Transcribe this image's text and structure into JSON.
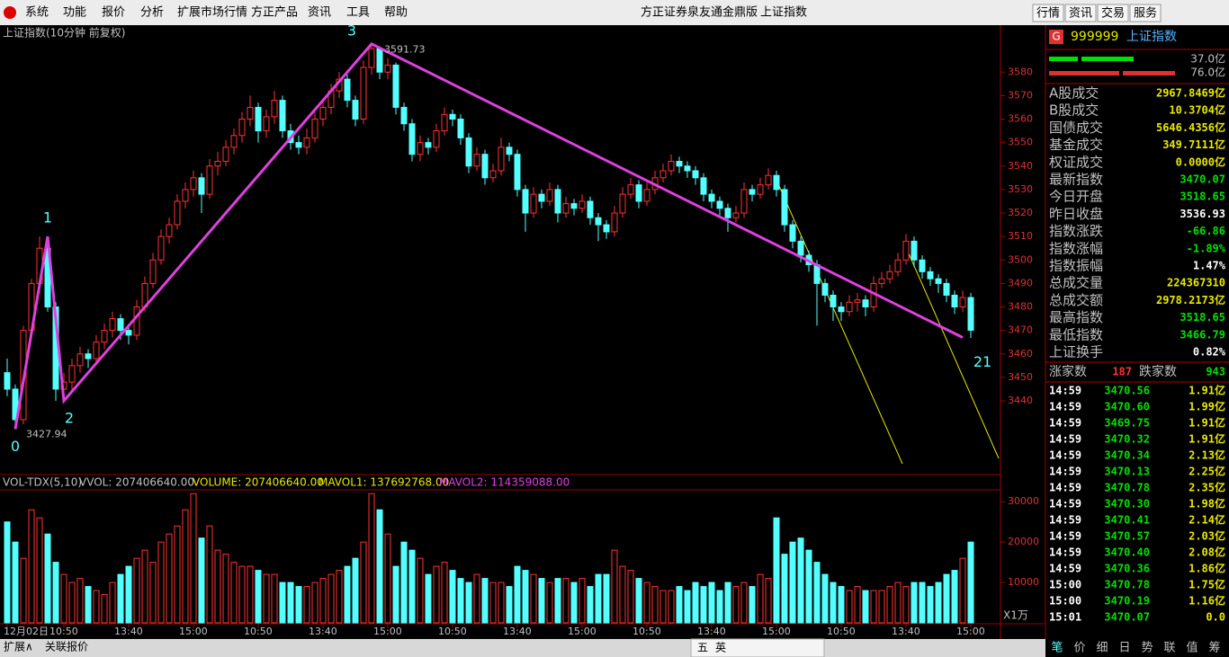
{
  "menu": {
    "items": [
      "系统",
      "功能",
      "报价",
      "分析",
      "扩展市场行情",
      "方正产品",
      "资讯",
      "工具",
      "帮助"
    ],
    "title": [
      "方正证券泉友通金鼎版",
      "上证指数"
    ],
    "buttons": [
      "行情",
      "资讯",
      "交易",
      "服务"
    ]
  },
  "chart_data": [
    {
      "type": "candlestick",
      "title": "上证指数(10分钟 前复权)",
      "up_color": "#ff3232",
      "down_color": "#54ffff",
      "ylim": [
        3409,
        3600
      ],
      "yticks": [
        3440,
        3450,
        3460,
        3470,
        3480,
        3490,
        3500,
        3510,
        3520,
        3530,
        3540,
        3550,
        3560,
        3570,
        3580
      ],
      "max_label": 3591.73,
      "min_label": 3427.94,
      "candles": [
        [
          3452,
          3458,
          3442,
          3445
        ],
        [
          3445,
          3447,
          3427.94,
          3432
        ],
        [
          3432,
          3472,
          3430,
          3470
        ],
        [
          3470,
          3492,
          3466,
          3490
        ],
        [
          3490,
          3510,
          3486,
          3505
        ],
        [
          3505,
          3507,
          3478,
          3480
        ],
        [
          3480,
          3482,
          3440,
          3445
        ],
        [
          3445,
          3452,
          3440,
          3448
        ],
        [
          3448,
          3458,
          3444,
          3455
        ],
        [
          3455,
          3463,
          3452,
          3460
        ],
        [
          3460,
          3462,
          3454,
          3458
        ],
        [
          3458,
          3468,
          3456,
          3465
        ],
        [
          3465,
          3473,
          3462,
          3470
        ],
        [
          3470,
          3478,
          3467,
          3475
        ],
        [
          3475,
          3477,
          3466,
          3470
        ],
        [
          3470,
          3472,
          3464,
          3468
        ],
        [
          3468,
          3483,
          3466,
          3480
        ],
        [
          3480,
          3493,
          3478,
          3490
        ],
        [
          3490,
          3503,
          3488,
          3500
        ],
        [
          3500,
          3513,
          3498,
          3510
        ],
        [
          3510,
          3518,
          3507,
          3515
        ],
        [
          3515,
          3528,
          3513,
          3525
        ],
        [
          3525,
          3533,
          3522,
          3530
        ],
        [
          3530,
          3538,
          3527,
          3535
        ],
        [
          3535,
          3537,
          3520,
          3528
        ],
        [
          3528,
          3543,
          3526,
          3540
        ],
        [
          3540,
          3546,
          3536,
          3542
        ],
        [
          3542,
          3551,
          3540,
          3548
        ],
        [
          3548,
          3556,
          3545,
          3553
        ],
        [
          3553,
          3563,
          3550,
          3560
        ],
        [
          3560,
          3570,
          3557,
          3565
        ],
        [
          3565,
          3567,
          3550,
          3555
        ],
        [
          3555,
          3564,
          3552,
          3561
        ],
        [
          3561,
          3572,
          3558,
          3568
        ],
        [
          3568,
          3570,
          3552,
          3555
        ],
        [
          3555,
          3558,
          3547,
          3550
        ],
        [
          3550,
          3553,
          3545,
          3548
        ],
        [
          3548,
          3556,
          3545,
          3552
        ],
        [
          3552,
          3563,
          3550,
          3560
        ],
        [
          3560,
          3568,
          3557,
          3565
        ],
        [
          3565,
          3575,
          3562,
          3572
        ],
        [
          3572,
          3580,
          3569,
          3577
        ],
        [
          3577,
          3579,
          3565,
          3568
        ],
        [
          3568,
          3570,
          3557,
          3560
        ],
        [
          3560,
          3585,
          3558,
          3582
        ],
        [
          3582,
          3591.73,
          3579,
          3590
        ],
        [
          3590,
          3591,
          3577,
          3580
        ],
        [
          3580,
          3586,
          3577,
          3583
        ],
        [
          3583,
          3584,
          3562,
          3565
        ],
        [
          3565,
          3567,
          3555,
          3558
        ],
        [
          3558,
          3560,
          3542,
          3545
        ],
        [
          3545,
          3553,
          3542,
          3550
        ],
        [
          3550,
          3552,
          3545,
          3548
        ],
        [
          3548,
          3558,
          3546,
          3555
        ],
        [
          3555,
          3565,
          3553,
          3562
        ],
        [
          3562,
          3564,
          3557,
          3560
        ],
        [
          3560,
          3562,
          3549,
          3552
        ],
        [
          3552,
          3554,
          3537,
          3540
        ],
        [
          3540,
          3548,
          3538,
          3545
        ],
        [
          3545,
          3547,
          3532,
          3535
        ],
        [
          3535,
          3541,
          3533,
          3538
        ],
        [
          3538,
          3552,
          3536,
          3548
        ],
        [
          3548,
          3550,
          3542,
          3545
        ],
        [
          3545,
          3547,
          3527,
          3530
        ],
        [
          3530,
          3532,
          3512,
          3520
        ],
        [
          3520,
          3531,
          3518,
          3528
        ],
        [
          3528,
          3530,
          3522,
          3525
        ],
        [
          3525,
          3533,
          3523,
          3530
        ],
        [
          3530,
          3532,
          3516,
          3520
        ],
        [
          3520,
          3527,
          3518,
          3524
        ],
        [
          3524,
          3526,
          3519,
          3522
        ],
        [
          3522,
          3528,
          3520,
          3525
        ],
        [
          3525,
          3527,
          3515,
          3518
        ],
        [
          3518,
          3520,
          3508,
          3515
        ],
        [
          3515,
          3517,
          3509,
          3512
        ],
        [
          3512,
          3523,
          3510,
          3520
        ],
        [
          3520,
          3531,
          3518,
          3528
        ],
        [
          3528,
          3535,
          3526,
          3532
        ],
        [
          3532,
          3534,
          3522,
          3525
        ],
        [
          3525,
          3533,
          3523,
          3530
        ],
        [
          3530,
          3538,
          3528,
          3535
        ],
        [
          3535,
          3541,
          3533,
          3538
        ],
        [
          3538,
          3545,
          3536,
          3542
        ],
        [
          3542,
          3544,
          3537,
          3540
        ],
        [
          3540,
          3542,
          3535,
          3538
        ],
        [
          3538,
          3540,
          3532,
          3535
        ],
        [
          3535,
          3537,
          3525,
          3528
        ],
        [
          3528,
          3530,
          3522,
          3525
        ],
        [
          3525,
          3527,
          3519,
          3522
        ],
        [
          3522,
          3524,
          3512,
          3518
        ],
        [
          3518,
          3523,
          3516,
          3520
        ],
        [
          3520,
          3533,
          3518,
          3530
        ],
        [
          3530,
          3532,
          3525,
          3528
        ],
        [
          3528,
          3535,
          3526,
          3532
        ],
        [
          3532,
          3539,
          3530,
          3536
        ],
        [
          3536,
          3538,
          3527,
          3530
        ],
        [
          3530,
          3532,
          3512,
          3515
        ],
        [
          3515,
          3517,
          3505,
          3508
        ],
        [
          3508,
          3510,
          3499,
          3502
        ],
        [
          3502,
          3504,
          3495,
          3498
        ],
        [
          3498,
          3500,
          3472,
          3490
        ],
        [
          3490,
          3492,
          3482,
          3485
        ],
        [
          3485,
          3487,
          3474,
          3480
        ],
        [
          3480,
          3482,
          3474,
          3478
        ],
        [
          3478,
          3485,
          3476,
          3482
        ],
        [
          3482,
          3486,
          3478,
          3483
        ],
        [
          3483,
          3485,
          3476,
          3480
        ],
        [
          3480,
          3493,
          3478,
          3490
        ],
        [
          3490,
          3495,
          3488,
          3492
        ],
        [
          3492,
          3498,
          3490,
          3495
        ],
        [
          3495,
          3503,
          3493,
          3500
        ],
        [
          3500,
          3511,
          3498,
          3508
        ],
        [
          3508,
          3510,
          3497,
          3500
        ],
        [
          3500,
          3502,
          3492,
          3495
        ],
        [
          3495,
          3497,
          3489,
          3492
        ],
        [
          3492,
          3494,
          3486,
          3490
        ],
        [
          3490,
          3492,
          3482,
          3485
        ],
        [
          3485,
          3487,
          3477,
          3480
        ],
        [
          3480,
          3487,
          3478,
          3484
        ],
        [
          3484,
          3486,
          3466.79,
          3470.07
        ]
      ],
      "zigzag": {
        "color": "#e040e0",
        "labels": [
          0,
          1,
          2,
          3,
          21
        ],
        "x": [
          1,
          5,
          7,
          45,
          118
        ],
        "y": [
          3428,
          3510,
          3440,
          3592,
          3467
        ]
      }
    },
    {
      "type": "bar",
      "title": "VOL-TDX(5,10)",
      "legend": [
        "VVOL: 207406640.00",
        "VOLUME: 207406640.00",
        "MAVOL1: 137692768.00",
        "MAVOL2: 114359088.00"
      ],
      "unit_label": "X1万",
      "period": "10分钟",
      "ylim": [
        0,
        32500
      ],
      "yticks": [
        10000,
        20000,
        30000
      ],
      "xticks": [
        {
          "value": 0,
          "label": "12月02日"
        },
        {
          "value": 7,
          "label": "10:50"
        },
        {
          "value": 15,
          "label": "13:40"
        },
        {
          "value": 23,
          "label": "15:00"
        },
        {
          "value": 31,
          "label": "10:50"
        },
        {
          "value": 39,
          "label": "13:40"
        },
        {
          "value": 47,
          "label": "15:00"
        },
        {
          "value": 55,
          "label": "10:50"
        },
        {
          "value": 63,
          "label": "13:40"
        },
        {
          "value": 71,
          "label": "15:00"
        },
        {
          "value": 79,
          "label": "10:50"
        },
        {
          "value": 87,
          "label": "13:40"
        },
        {
          "value": 95,
          "label": "15:00"
        },
        {
          "value": 103,
          "label": "10:50"
        },
        {
          "value": 111,
          "label": "13:40"
        },
        {
          "value": 119,
          "label": "15:00"
        }
      ],
      "values": [
        25000,
        20000,
        16000,
        28000,
        26000,
        22000,
        15000,
        12000,
        10000,
        11000,
        9000,
        8000,
        7000,
        10000,
        12000,
        14000,
        16000,
        18000,
        15000,
        20000,
        22000,
        24000,
        28000,
        32000,
        21000,
        24000,
        18000,
        17000,
        15000,
        14000,
        14000,
        13000,
        12000,
        12000,
        10000,
        10000,
        9000,
        9000,
        10000,
        11000,
        12000,
        13000,
        14000,
        16000,
        20000,
        32000,
        28000,
        22000,
        14000,
        20000,
        18000,
        16000,
        12000,
        14000,
        15000,
        13000,
        11000,
        10000,
        12000,
        11000,
        10000,
        10000,
        9000,
        14000,
        13000,
        12000,
        11000,
        10000,
        11000,
        11000,
        10000,
        11000,
        9000,
        12000,
        12000,
        18000,
        14000,
        13000,
        11000,
        10000,
        9000,
        8000,
        8000,
        9000,
        8000,
        10000,
        9000,
        10000,
        8000,
        10000,
        9000,
        10000,
        9000,
        12000,
        11000,
        26000,
        17000,
        20000,
        21000,
        18000,
        15000,
        12000,
        10000,
        9000,
        8000,
        9000,
        8000,
        8000,
        8000,
        9000,
        10000,
        9000,
        10000,
        10000,
        9000,
        10000,
        12000,
        13000,
        16000,
        20000
      ]
    }
  ],
  "quote": {
    "badge": "G",
    "code": "999999",
    "name": "上证指数",
    "bars": [
      "37.0亿",
      "76.0亿"
    ],
    "rows": [
      [
        "A股成交",
        "2967.8469亿"
      ],
      [
        "B股成交",
        "10.3704亿"
      ],
      [
        "国债成交",
        "5646.4356亿"
      ],
      [
        "基金成交",
        "349.7111亿"
      ],
      [
        "权证成交",
        "0.0000亿"
      ],
      [
        "最新指数",
        "3470.07"
      ],
      [
        "今日开盘",
        "3518.65"
      ],
      [
        "昨日收盘",
        "3536.93"
      ],
      [
        "指数涨跌",
        "-66.86"
      ],
      [
        "指数涨幅",
        "-1.89%"
      ],
      [
        "指数振幅",
        "1.47%"
      ],
      [
        "总成交量",
        "224367310"
      ],
      [
        "总成交额",
        "2978.2173亿"
      ],
      [
        "最高指数",
        "3518.65"
      ],
      [
        "最低指数",
        "3466.79"
      ],
      [
        "上证换手",
        "0.82%"
      ]
    ],
    "breadth": [
      "涨家数",
      "187",
      "跌家数",
      "943"
    ],
    "ticks": [
      [
        "14:59",
        "3470.56",
        "1.91亿"
      ],
      [
        "14:59",
        "3470.60",
        "1.99亿"
      ],
      [
        "14:59",
        "3469.75",
        "1.91亿"
      ],
      [
        "14:59",
        "3470.32",
        "1.91亿"
      ],
      [
        "14:59",
        "3470.34",
        "2.13亿"
      ],
      [
        "14:59",
        "3470.13",
        "2.25亿"
      ],
      [
        "14:59",
        "3470.78",
        "2.35亿"
      ],
      [
        "14:59",
        "3470.30",
        "1.98亿"
      ],
      [
        "14:59",
        "3470.41",
        "2.14亿"
      ],
      [
        "14:59",
        "3470.57",
        "2.03亿"
      ],
      [
        "14:59",
        "3470.40",
        "2.08亿"
      ],
      [
        "14:59",
        "3470.36",
        "1.86亿"
      ],
      [
        "15:00",
        "3470.78",
        "1.75亿"
      ],
      [
        "15:00",
        "3470.19",
        "1.16亿"
      ],
      [
        "15:01",
        "3470.07",
        "0.0"
      ]
    ],
    "tabs": [
      "笔",
      "价",
      "细",
      "日",
      "势",
      "联",
      "值",
      "筹"
    ]
  },
  "footer": {
    "left": [
      "扩展∧",
      "关联报价"
    ],
    "toolbar": [
      "五",
      "英"
    ]
  }
}
